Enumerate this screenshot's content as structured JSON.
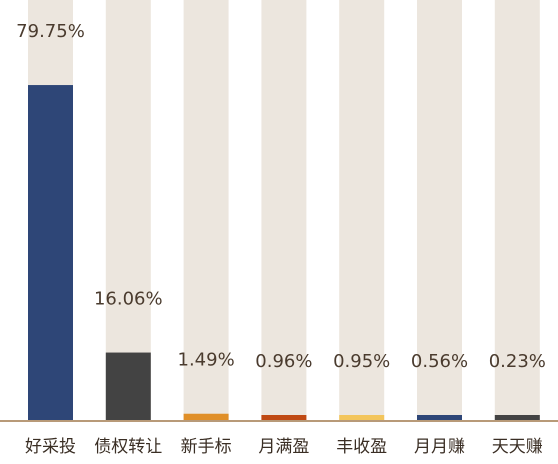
{
  "chart_data": {
    "type": "bar",
    "categories": [
      "好采投",
      "债权转让",
      "新手标",
      "月满盈",
      "丰收盈",
      "月月赚",
      "天天赚"
    ],
    "values": [
      79.75,
      16.06,
      1.49,
      0.96,
      0.95,
      0.56,
      0.23
    ],
    "value_labels": [
      "79.75%",
      "16.06%",
      "1.49%",
      "0.96%",
      "0.95%",
      "0.56%",
      "0.23%"
    ],
    "colors": [
      "#2e4677",
      "#434343",
      "#e08f28",
      "#c04a14",
      "#f3c55b",
      "#2e4677",
      "#434343"
    ],
    "background_color": "#ece6de",
    "ylim": [
      0,
      100
    ],
    "title": "",
    "xlabel": "",
    "ylabel": "",
    "grid": false,
    "legend": "none"
  }
}
